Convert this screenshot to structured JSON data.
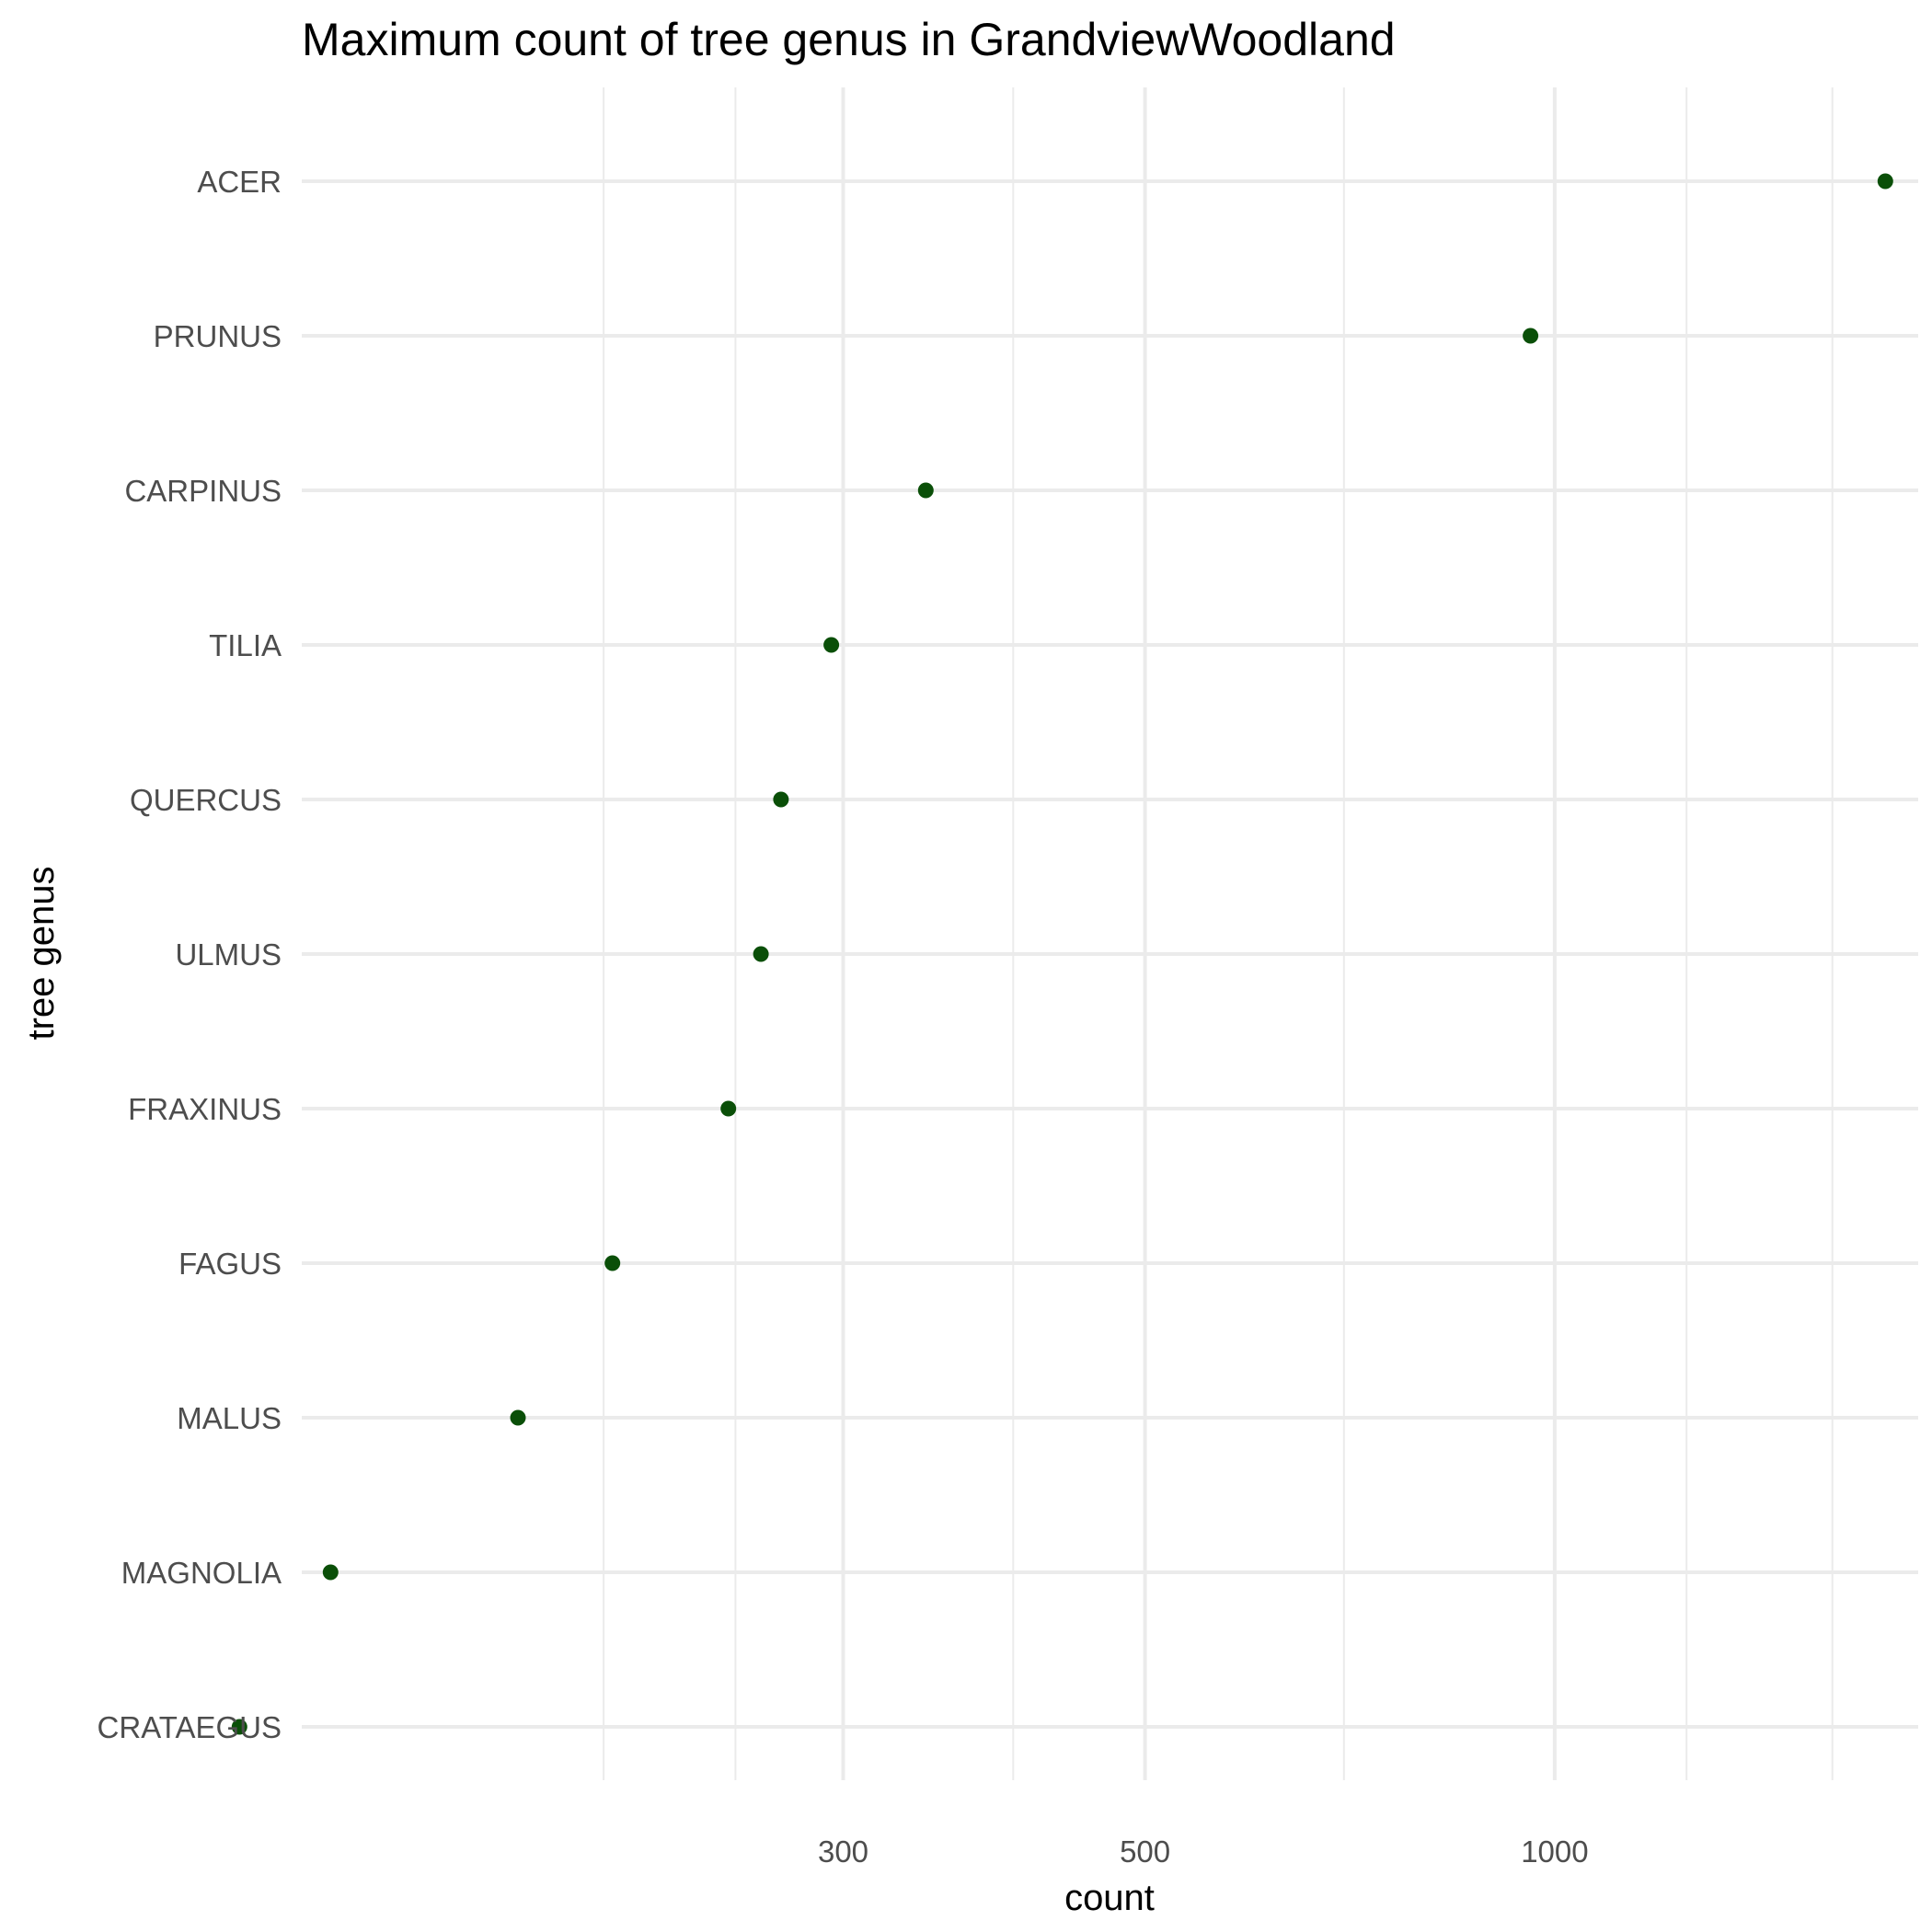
{
  "chart_data": {
    "type": "scatter",
    "title": "Maximum count of tree genus in GrandviewWoodland",
    "xlabel": "count",
    "ylabel": "tree genus",
    "x_scale": "log10",
    "xlim": [
      120,
      1850
    ],
    "x_ticks": [
      300,
      500,
      1000
    ],
    "x_tick_labels": [
      "300",
      "500",
      "1000"
    ],
    "x_minor_gridlines": [
      200,
      250,
      400,
      700,
      1250,
      1600
    ],
    "grid": true,
    "point_color": "#0a4f08",
    "categories": [
      "ACER",
      "PRUNUS",
      "CARPINUS",
      "TILIA",
      "QUERCUS",
      "ULMUS",
      "FRAXINUS",
      "FAGUS",
      "MALUS",
      "MAGNOLIA",
      "CRATAEGUS"
    ],
    "values": [
      1750,
      960,
      345,
      294,
      270,
      261,
      247,
      203,
      173,
      126,
      108
    ]
  }
}
